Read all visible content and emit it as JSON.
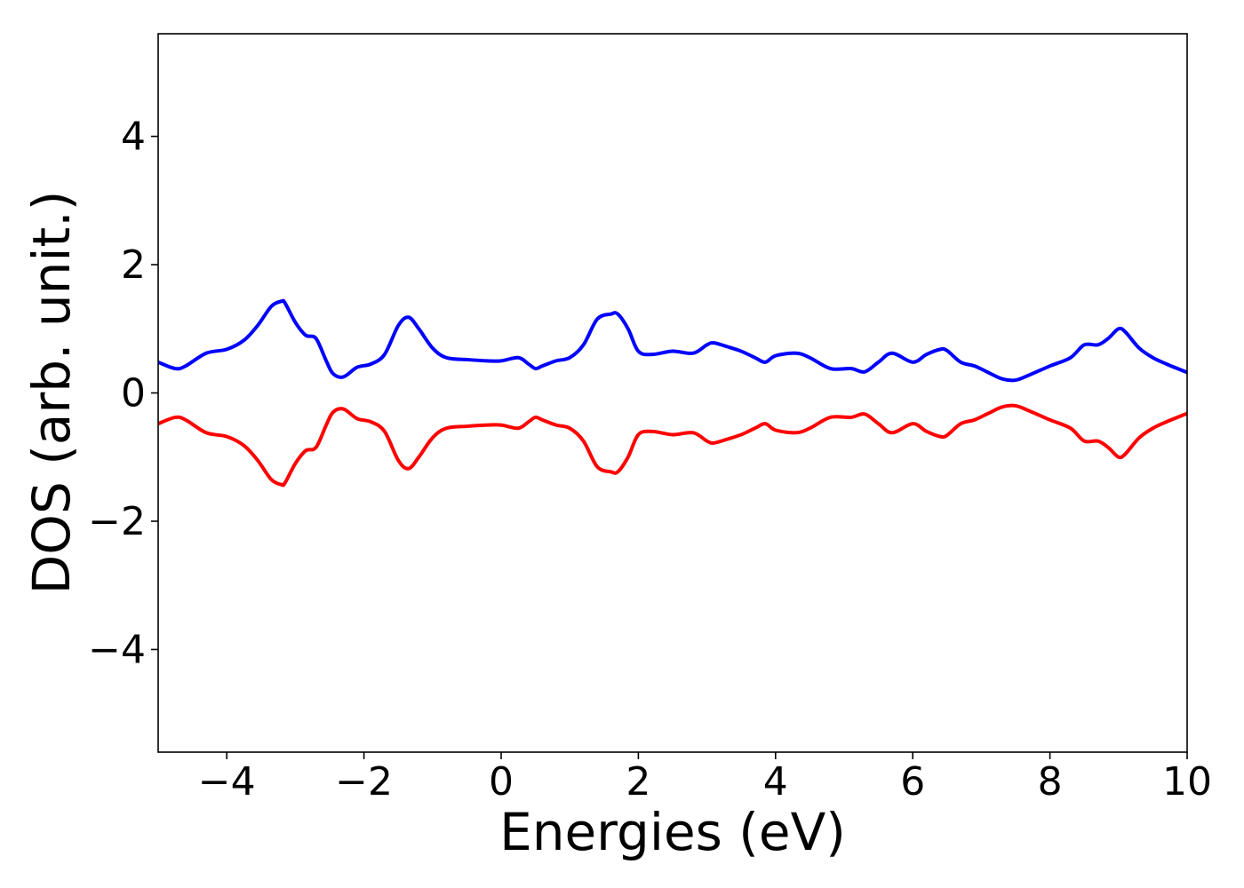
{
  "chart_data": {
    "type": "line",
    "title": "",
    "xlabel": "Energies (eV)",
    "ylabel": "DOS (arb. unit.)",
    "xlim": [
      -5,
      10
    ],
    "ylim": [
      -5.6,
      5.6
    ],
    "xticks": [
      -4,
      -2,
      0,
      2,
      4,
      6,
      8,
      10
    ],
    "xtick_labels": [
      "−4",
      "−2",
      "0",
      "2",
      "4",
      "6",
      "8",
      "10"
    ],
    "yticks": [
      -4,
      -2,
      0,
      2,
      4
    ],
    "ytick_labels": [
      "−4",
      "−2",
      "0",
      "2",
      "4"
    ],
    "grid": false,
    "legend": "none",
    "series": [
      {
        "color": "#0000ff",
        "x": [
          -5.0,
          -4.75,
          -4.6,
          -4.3,
          -4.0,
          -3.75,
          -3.55,
          -3.35,
          -3.2,
          -3.15,
          -3.0,
          -2.85,
          -2.7,
          -2.55,
          -2.45,
          -2.3,
          -2.1,
          -1.9,
          -1.7,
          -1.5,
          -1.35,
          -1.2,
          -1.0,
          -0.8,
          -0.5,
          -0.2,
          0.0,
          0.25,
          0.4,
          0.5,
          0.6,
          0.8,
          1.0,
          1.2,
          1.4,
          1.6,
          1.7,
          1.85,
          2.0,
          2.2,
          2.5,
          2.8,
          3.0,
          3.1,
          3.3,
          3.5,
          3.7,
          3.85,
          4.0,
          4.3,
          4.5,
          4.8,
          5.1,
          5.3,
          5.5,
          5.7,
          6.0,
          6.2,
          6.4,
          6.5,
          6.7,
          6.9,
          7.1,
          7.3,
          7.5,
          7.7,
          8.0,
          8.3,
          8.5,
          8.7,
          8.85,
          9.0,
          9.1,
          9.3,
          9.5,
          9.7,
          10.0
        ],
        "y": [
          0.48,
          0.38,
          0.42,
          0.62,
          0.68,
          0.82,
          1.05,
          1.35,
          1.43,
          1.4,
          1.1,
          0.9,
          0.85,
          0.5,
          0.3,
          0.25,
          0.4,
          0.45,
          0.6,
          1.05,
          1.18,
          1.0,
          0.7,
          0.55,
          0.52,
          0.5,
          0.5,
          0.55,
          0.45,
          0.38,
          0.42,
          0.5,
          0.55,
          0.75,
          1.15,
          1.23,
          1.23,
          1.0,
          0.65,
          0.6,
          0.65,
          0.62,
          0.75,
          0.78,
          0.72,
          0.65,
          0.55,
          0.48,
          0.58,
          0.62,
          0.55,
          0.38,
          0.38,
          0.33,
          0.48,
          0.62,
          0.48,
          0.6,
          0.68,
          0.66,
          0.48,
          0.42,
          0.32,
          0.22,
          0.2,
          0.28,
          0.42,
          0.55,
          0.75,
          0.75,
          0.85,
          1.0,
          0.95,
          0.7,
          0.55,
          0.45,
          0.32
        ]
      },
      {
        "color": "#ff0000",
        "x": [
          -5.0,
          -4.75,
          -4.6,
          -4.3,
          -4.0,
          -3.75,
          -3.55,
          -3.35,
          -3.2,
          -3.15,
          -3.0,
          -2.85,
          -2.7,
          -2.55,
          -2.45,
          -2.3,
          -2.1,
          -1.9,
          -1.7,
          -1.5,
          -1.35,
          -1.2,
          -1.0,
          -0.8,
          -0.5,
          -0.2,
          0.0,
          0.25,
          0.4,
          0.5,
          0.6,
          0.8,
          1.0,
          1.2,
          1.4,
          1.6,
          1.7,
          1.85,
          2.0,
          2.2,
          2.5,
          2.8,
          3.0,
          3.1,
          3.3,
          3.5,
          3.7,
          3.85,
          4.0,
          4.3,
          4.5,
          4.8,
          5.1,
          5.3,
          5.5,
          5.7,
          6.0,
          6.2,
          6.4,
          6.5,
          6.7,
          6.9,
          7.1,
          7.3,
          7.5,
          7.7,
          8.0,
          8.3,
          8.5,
          8.7,
          8.85,
          9.0,
          9.1,
          9.3,
          9.5,
          9.7,
          10.0
        ],
        "y": [
          -0.48,
          -0.38,
          -0.42,
          -0.62,
          -0.68,
          -0.82,
          -1.05,
          -1.35,
          -1.43,
          -1.4,
          -1.1,
          -0.9,
          -0.85,
          -0.5,
          -0.3,
          -0.25,
          -0.4,
          -0.45,
          -0.6,
          -1.05,
          -1.18,
          -1.0,
          -0.7,
          -0.55,
          -0.52,
          -0.5,
          -0.5,
          -0.55,
          -0.45,
          -0.38,
          -0.42,
          -0.5,
          -0.55,
          -0.75,
          -1.15,
          -1.23,
          -1.23,
          -1.0,
          -0.65,
          -0.6,
          -0.65,
          -0.62,
          -0.75,
          -0.78,
          -0.72,
          -0.65,
          -0.55,
          -0.48,
          -0.58,
          -0.62,
          -0.55,
          -0.38,
          -0.38,
          -0.33,
          -0.48,
          -0.62,
          -0.48,
          -0.6,
          -0.68,
          -0.66,
          -0.48,
          -0.42,
          -0.32,
          -0.22,
          -0.2,
          -0.28,
          -0.42,
          -0.55,
          -0.75,
          -0.75,
          -0.85,
          -1.0,
          -0.95,
          -0.7,
          -0.55,
          -0.45,
          -0.32
        ]
      }
    ]
  }
}
